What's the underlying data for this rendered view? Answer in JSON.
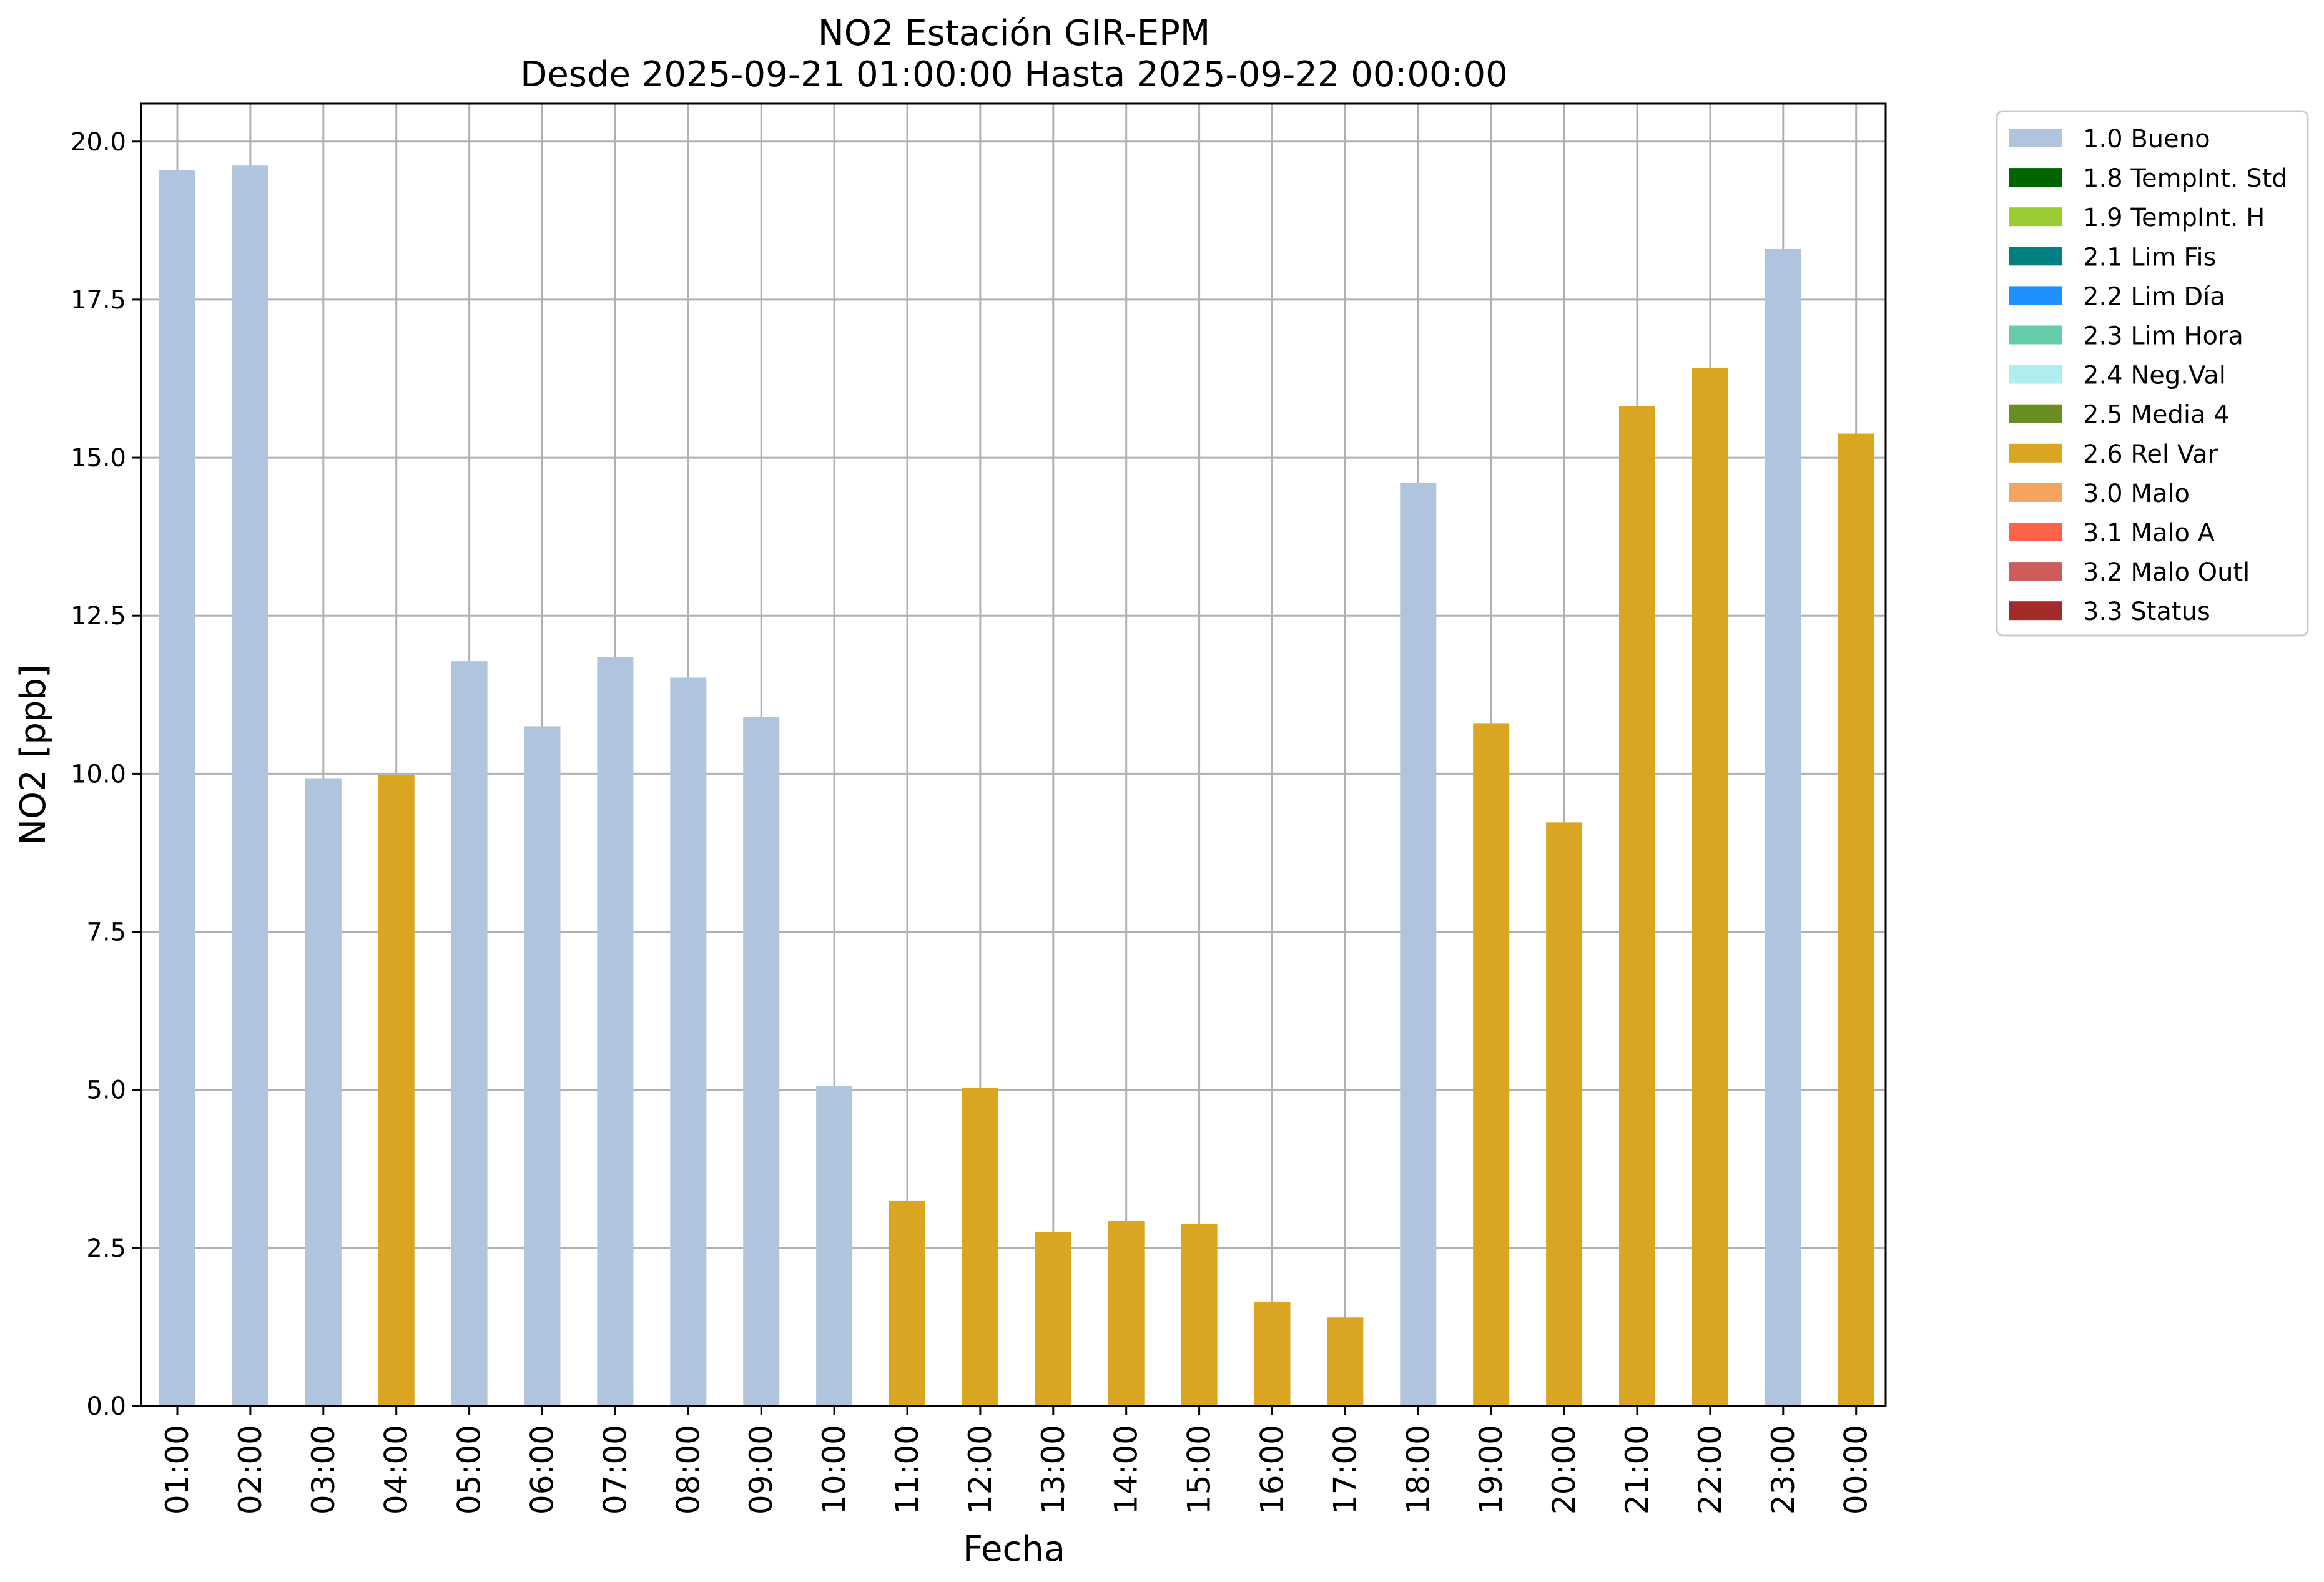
{
  "chart_data": {
    "type": "bar",
    "title_line1": "NO2 Estación GIR-EPM",
    "title_line2": "Desde 2025-09-21 01:00:00 Hasta 2025-09-22 00:00:00",
    "xlabel": "Fecha",
    "ylabel": "NO2 [ppb]",
    "ylim": [
      0,
      20.6
    ],
    "yticks": [
      "0.0",
      "2.5",
      "5.0",
      "7.5",
      "10.0",
      "12.5",
      "15.0",
      "17.5",
      "20.0"
    ],
    "grid": true,
    "legend_position": "outside-top-right",
    "categories": [
      "01:00",
      "02:00",
      "03:00",
      "04:00",
      "05:00",
      "06:00",
      "07:00",
      "08:00",
      "09:00",
      "10:00",
      "11:00",
      "12:00",
      "13:00",
      "14:00",
      "15:00",
      "16:00",
      "17:00",
      "18:00",
      "19:00",
      "20:00",
      "21:00",
      "22:00",
      "23:00",
      "00:00"
    ],
    "values": [
      19.55,
      19.62,
      9.93,
      9.98,
      11.78,
      10.75,
      11.85,
      11.52,
      10.9,
      5.06,
      3.25,
      5.03,
      2.75,
      2.93,
      2.88,
      1.65,
      1.4,
      14.6,
      10.8,
      9.23,
      15.82,
      16.42,
      18.3,
      15.38
    ],
    "flags": [
      "1.0 Bueno",
      "1.0 Bueno",
      "1.0 Bueno",
      "2.6 Rel Var",
      "1.0 Bueno",
      "1.0 Bueno",
      "1.0 Bueno",
      "1.0 Bueno",
      "1.0 Bueno",
      "1.0 Bueno",
      "2.6 Rel Var",
      "2.6 Rel Var",
      "2.6 Rel Var",
      "2.6 Rel Var",
      "2.6 Rel Var",
      "2.6 Rel Var",
      "2.6 Rel Var",
      "1.0 Bueno",
      "2.6 Rel Var",
      "2.6 Rel Var",
      "2.6 Rel Var",
      "2.6 Rel Var",
      "1.0 Bueno",
      "2.6 Rel Var"
    ],
    "legend": [
      {
        "label": "1.0 Bueno",
        "color": "#b0c4de"
      },
      {
        "label": "1.8 TempInt. Std",
        "color": "#006400"
      },
      {
        "label": "1.9 TempInt. H",
        "color": "#9acd32"
      },
      {
        "label": "2.1 Lim Fis",
        "color": "#008080"
      },
      {
        "label": "2.2 Lim Día",
        "color": "#1e90ff"
      },
      {
        "label": "2.3 Lim Hora",
        "color": "#66cdaa"
      },
      {
        "label": "2.4 Neg.Val",
        "color": "#afeeee"
      },
      {
        "label": "2.5 Media 4",
        "color": "#6b8e23"
      },
      {
        "label": "2.6 Rel Var",
        "color": "#daa520"
      },
      {
        "label": "3.0 Malo",
        "color": "#f4a460"
      },
      {
        "label": "3.1 Malo A",
        "color": "#ff6347"
      },
      {
        "label": "3.2 Malo Outl",
        "color": "#cd5c5c"
      },
      {
        "label": "3.3 Status",
        "color": "#a52a2a"
      }
    ]
  }
}
